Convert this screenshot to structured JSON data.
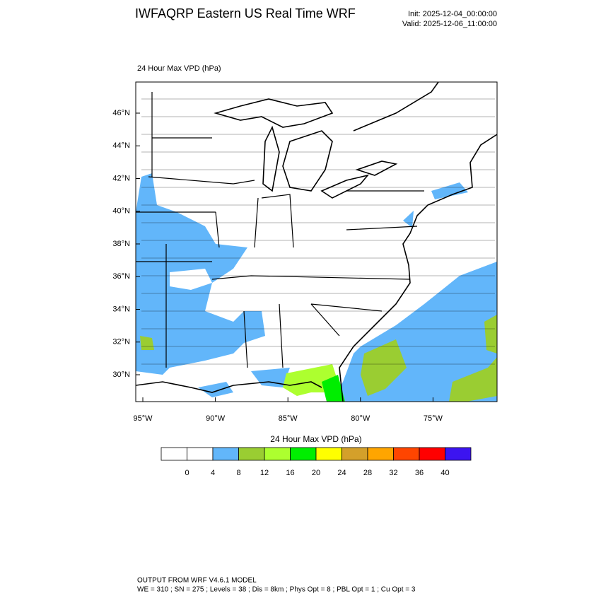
{
  "header": {
    "title": "IWFAQRP Eastern US Real Time WRF",
    "init": "Init: 2025-12-04_00:00:00",
    "valid": "Valid: 2025-12-06_11:00:00"
  },
  "map": {
    "label": "24 Hour Max VPD   (hPa)",
    "lat_ticks": [
      {
        "value": 46,
        "label": "46°N"
      },
      {
        "value": 44,
        "label": "44°N"
      },
      {
        "value": 42,
        "label": "42°N"
      },
      {
        "value": 40,
        "label": "40°N"
      },
      {
        "value": 38,
        "label": "38°N"
      },
      {
        "value": 36,
        "label": "36°N"
      },
      {
        "value": 34,
        "label": "34°N"
      },
      {
        "value": 32,
        "label": "32°N"
      },
      {
        "value": 30,
        "label": "30°N"
      }
    ],
    "lon_ticks": [
      {
        "value": -95,
        "label": "95°W"
      },
      {
        "value": -90,
        "label": "90°W"
      },
      {
        "value": -85,
        "label": "85°W"
      },
      {
        "value": -80,
        "label": "80°W"
      },
      {
        "value": -75,
        "label": "75°W"
      }
    ]
  },
  "colorbar": {
    "title": "24 Hour Max VPD  (hPa)",
    "colors": [
      "#ffffff",
      "#ffffff",
      "#62b6fa",
      "#9acd32",
      "#adff2f",
      "#00ee00",
      "#ffff00",
      "#d4a02a",
      "#ffa500",
      "#ff4500",
      "#ff0000",
      "#3c14f0"
    ],
    "labels": [
      0,
      4,
      8,
      12,
      16,
      20,
      24,
      28,
      32,
      36,
      40
    ]
  },
  "footer": {
    "line1": "OUTPUT FROM WRF V4.6.1 MODEL",
    "line2": "WE = 310 ; SN = 275 ; Levels = 38 ; Dis = 8km ; Phys Opt = 8 ; PBL Opt = 1 ; Cu Opt = 3"
  }
}
